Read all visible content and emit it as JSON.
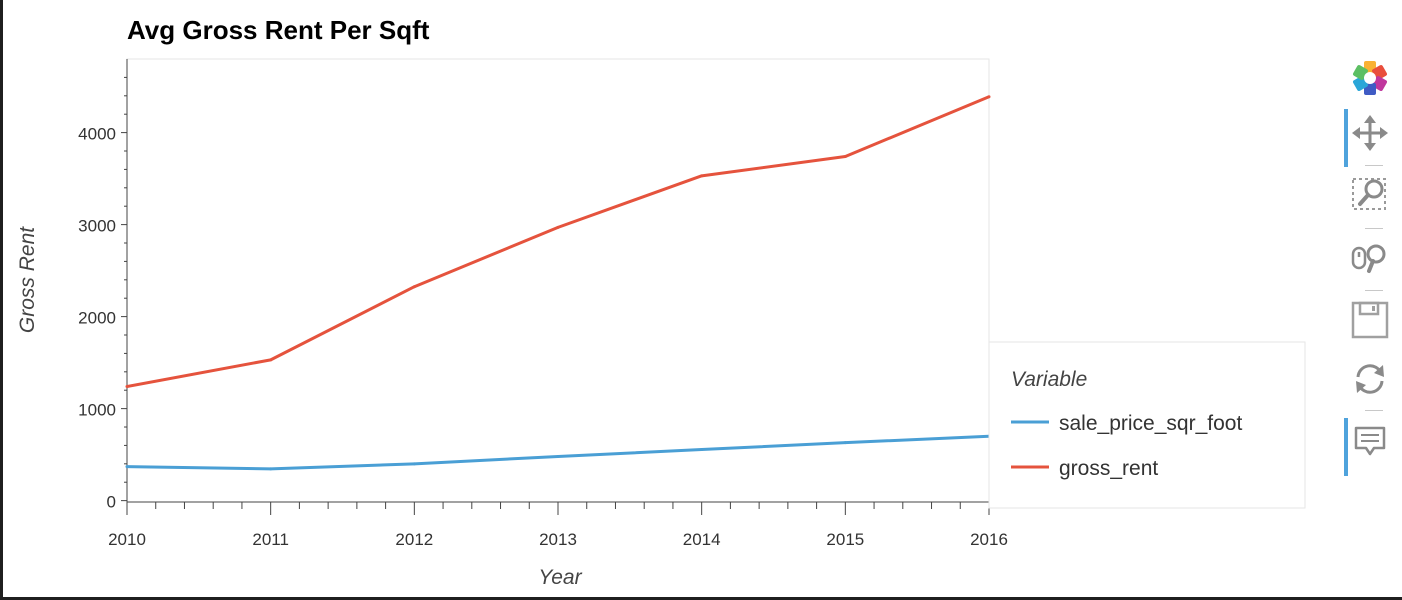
{
  "chart_data": {
    "type": "line",
    "title": "Avg Gross Rent Per Sqft",
    "xlabel": "Year",
    "ylabel": "Gross Rent",
    "x": [
      2010,
      2011,
      2012,
      2013,
      2014,
      2015,
      2016
    ],
    "xlim": [
      2010,
      2016
    ],
    "ylim": [
      -15,
      4800
    ],
    "xticks": [
      "2010",
      "2011",
      "2012",
      "2013",
      "2014",
      "2015",
      "2016"
    ],
    "yticks": [
      "0",
      "1000",
      "2000",
      "3000",
      "4000"
    ],
    "grid": false,
    "legend": {
      "title": "Variable",
      "placement": "right"
    },
    "series": [
      {
        "name": "sale_price_sqr_foot",
        "color": "#4a9fd5",
        "values": [
          370,
          345,
          400,
          480,
          555,
          630,
          700
        ]
      },
      {
        "name": "gross_rent",
        "color": "#e5533d",
        "values": [
          1240,
          1530,
          2325,
          2970,
          3530,
          3740,
          4390
        ]
      }
    ]
  },
  "toolbar": {
    "tools": [
      {
        "name": "bokeh-logo",
        "icon": "logo-icon"
      },
      {
        "name": "pan",
        "icon": "pan-icon"
      },
      {
        "name": "box-zoom",
        "icon": "box-zoom-icon"
      },
      {
        "name": "wheel-zoom",
        "icon": "wheel-zoom-icon"
      },
      {
        "name": "save",
        "icon": "save-icon"
      },
      {
        "name": "reset",
        "icon": "reset-icon"
      },
      {
        "name": "hover",
        "icon": "hover-icon"
      }
    ]
  }
}
